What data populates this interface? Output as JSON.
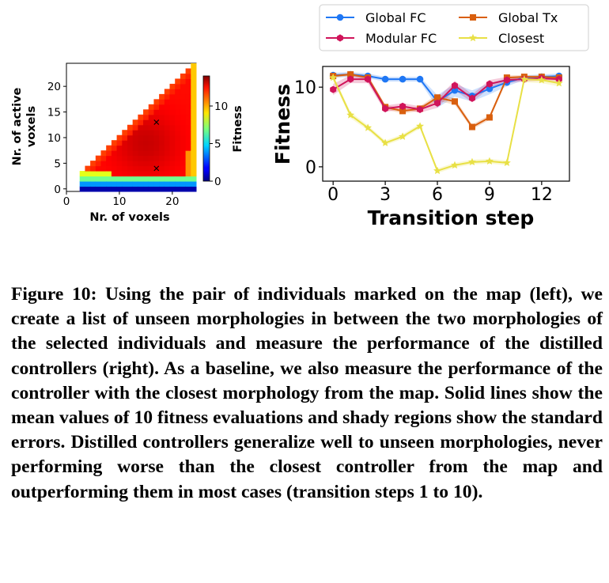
{
  "chart_data": [
    {
      "type": "heatmap",
      "xlabel": "Nr. of voxels",
      "ylabel": "Nr. of active voxels",
      "colorbar_label": "Fitness",
      "xticks": [
        "0",
        "10",
        "20"
      ],
      "yticks": [
        "0",
        "5",
        "10",
        "15",
        "20"
      ],
      "colorbar_ticks": [
        "0",
        "5",
        "10"
      ],
      "xlim": [
        0,
        24.5
      ],
      "ylim": [
        -0.5,
        24.5
      ],
      "clim": [
        0,
        14
      ],
      "colormap": "jet",
      "grid_note": "cells filled for active voxels between 1 and number of voxels",
      "marked_individuals": [
        {
          "x": 17,
          "y": 13,
          "marker": "x"
        },
        {
          "x": 17,
          "y": 4,
          "marker": "x"
        }
      ]
    },
    {
      "type": "line",
      "xlabel": "Transition step",
      "ylabel": "Fitness",
      "xticks": [
        "0",
        "3",
        "6",
        "9",
        "12"
      ],
      "yticks": [
        "0",
        "10"
      ],
      "xlim": [
        -0.6,
        13.6
      ],
      "ylim": [
        -1.8,
        12.6
      ],
      "legend_placement": "top, two columns",
      "x": [
        0,
        1,
        2,
        3,
        4,
        5,
        6,
        7,
        8,
        9,
        10,
        11,
        12,
        13
      ],
      "series": [
        {
          "name": "Global FC",
          "color": "#1f77f4",
          "marker": "circle",
          "values": [
            11.5,
            11.6,
            11.4,
            11.0,
            11.0,
            11.0,
            8.2,
            9.6,
            8.9,
            9.8,
            10.6,
            11.2,
            11.3,
            11.4
          ],
          "err": [
            0.3,
            0.3,
            0.3,
            0.3,
            0.3,
            0.3,
            0.8,
            0.8,
            0.7,
            0.7,
            0.5,
            0.3,
            0.3,
            0.3
          ]
        },
        {
          "name": "Global Tx",
          "color": "#d95f0e",
          "marker": "square",
          "values": [
            11.4,
            11.6,
            11.2,
            7.5,
            7.0,
            7.3,
            8.7,
            8.2,
            5.0,
            6.2,
            11.2,
            11.3,
            11.3,
            11.2
          ],
          "err": [
            0.2,
            0.2,
            0.3,
            0.3,
            0.3,
            0.3,
            0.4,
            0.4,
            0.3,
            0.3,
            0.3,
            0.2,
            0.2,
            0.2
          ]
        },
        {
          "name": "Modular FC",
          "color": "#d0145a",
          "marker": "hexagon",
          "values": [
            9.7,
            11.0,
            11.0,
            7.3,
            7.6,
            7.2,
            8.0,
            10.2,
            8.6,
            10.4,
            10.9,
            11.0,
            11.1,
            11.0
          ],
          "err": [
            0.7,
            0.5,
            0.5,
            0.4,
            0.4,
            0.4,
            0.6,
            0.6,
            0.5,
            0.5,
            0.4,
            0.3,
            0.3,
            0.3
          ]
        },
        {
          "name": "Closest",
          "color": "#e8e045",
          "marker": "star",
          "values": [
            11.2,
            6.5,
            4.9,
            3.0,
            3.8,
            5.1,
            -0.5,
            0.2,
            0.6,
            0.7,
            0.5,
            11.0,
            10.9,
            10.5
          ],
          "err": [
            0.4,
            0.4,
            0.3,
            0.3,
            0.3,
            0.3,
            0.3,
            0.3,
            0.3,
            0.3,
            0.3,
            0.4,
            0.4,
            0.4
          ]
        }
      ]
    }
  ],
  "caption": {
    "label": "Figure 10:",
    "text": "Using the pair of individuals marked on the map (left), we create a list of unseen morphologies in between the two morphologies of the selected individuals and measure the performance of the distilled controllers (right). As a baseline, we also measure the performance of the controller with the closest morphology from the map. Solid lines show the mean values of 10 fitness evaluations and shady regions show the standard errors. Distilled controllers generalize well to unseen morphologies, never performing worse than the closest controller from the map and outperforming them in most cases (transition steps 1 to 10)."
  }
}
